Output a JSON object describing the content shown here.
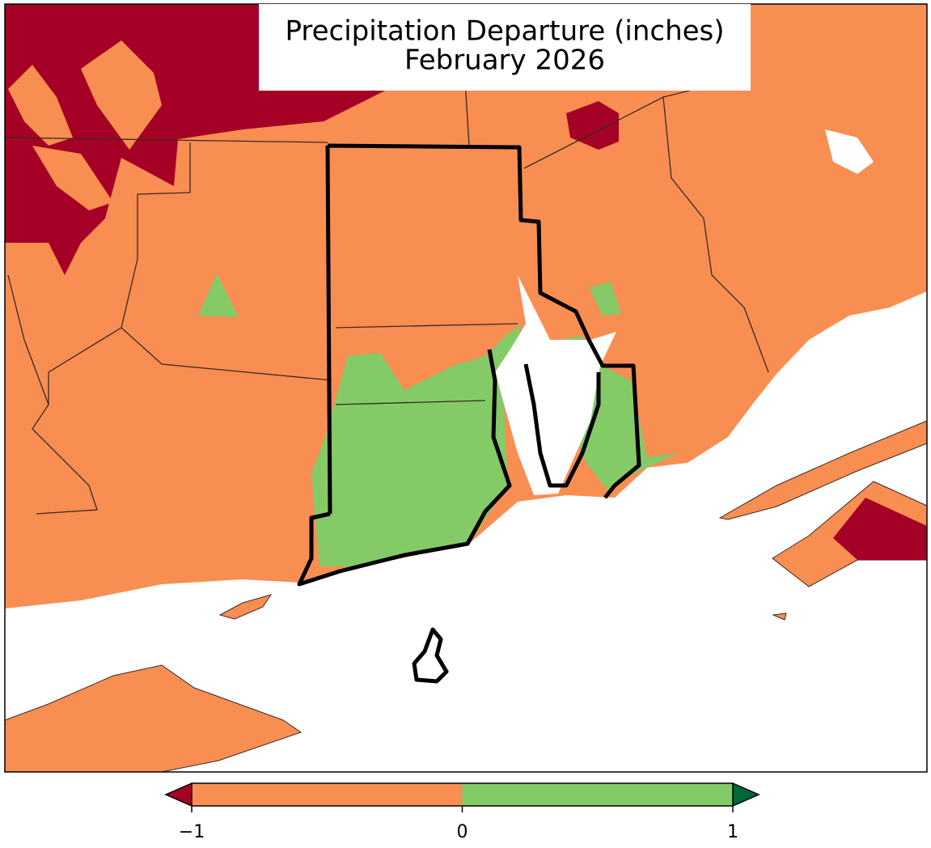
{
  "title": [
    "Precipitation Departure (inches)",
    "February 2026"
  ],
  "colorbar": {
    "boundaries": [
      -1,
      0,
      1
    ],
    "colors": [
      "#f98e52",
      "#84ca66"
    ],
    "extend_colors": [
      "#a50026",
      "#006837"
    ],
    "ticks": [
      {
        "value": -1,
        "label": "−1"
      },
      {
        "value": 0,
        "label": "0"
      },
      {
        "value": 1,
        "label": "1"
      }
    ]
  }
}
